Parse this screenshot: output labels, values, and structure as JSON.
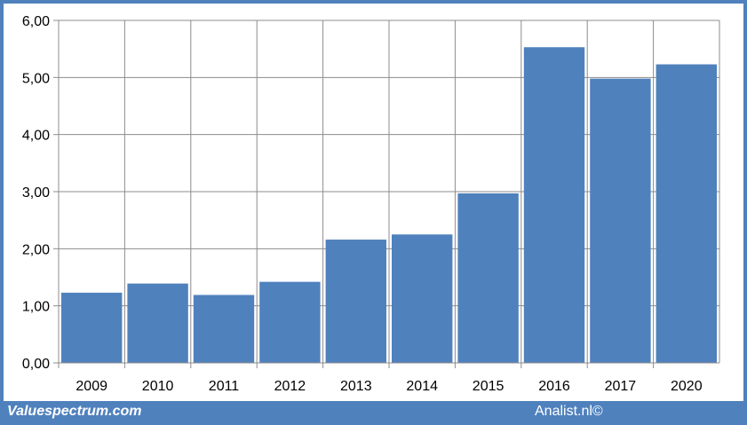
{
  "footer": {
    "left": "Valuespectrum.com",
    "right": "Analist.nl©"
  },
  "colors": {
    "bar": "#4f81bd",
    "frame": "#4f81bd",
    "grid": "#8c8c8c"
  },
  "chart_data": {
    "type": "bar",
    "categories": [
      "2009",
      "2010",
      "2011",
      "2012",
      "2013",
      "2014",
      "2015",
      "2016",
      "2017",
      "2020"
    ],
    "values": [
      1.23,
      1.39,
      1.19,
      1.42,
      2.16,
      2.25,
      2.97,
      5.53,
      4.98,
      5.23
    ],
    "ylim": [
      0,
      6
    ],
    "yticks": [
      "0,00",
      "1,00",
      "2,00",
      "3,00",
      "4,00",
      "5,00",
      "6,00"
    ],
    "title": "",
    "xlabel": "",
    "ylabel": "",
    "grid": true,
    "legend": "none"
  }
}
